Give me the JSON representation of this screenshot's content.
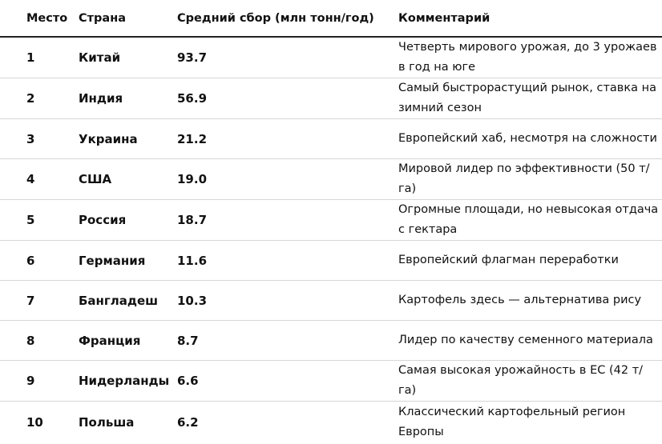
{
  "table": {
    "headers": {
      "rank": "Место",
      "country": "Страна",
      "yield": "Средний сбор (млн тонн/год)",
      "comment": "Комментарий"
    },
    "rows": [
      {
        "rank": "1",
        "country": "Китай",
        "yield": "93.7",
        "comment": "Четверть мирового урожая, до 3 урожаев в год на юге"
      },
      {
        "rank": "2",
        "country": "Индия",
        "yield": "56.9",
        "comment": "Самый быстрорастущий рынок, ставка на зимний сезон"
      },
      {
        "rank": "3",
        "country": "Украина",
        "yield": "21.2",
        "comment": "Европейский хаб, несмотря на сложности"
      },
      {
        "rank": "4",
        "country": "США",
        "yield": "19.0",
        "comment": "Мировой лидер по эффективности (50 т/га)"
      },
      {
        "rank": "5",
        "country": "Россия",
        "yield": "18.7",
        "comment": "Огромные площади, но невысокая отдача с гектара"
      },
      {
        "rank": "6",
        "country": "Германия",
        "yield": "11.6",
        "comment": "Европейский флагман переработки"
      },
      {
        "rank": "7",
        "country": "Бангладеш",
        "yield": "10.3",
        "comment": "Картофель здесь — альтернатива рису"
      },
      {
        "rank": "8",
        "country": "Франция",
        "yield": "8.7",
        "comment": "Лидер по качеству семенного материала"
      },
      {
        "rank": "9",
        "country": "Нидерланды",
        "yield": "6.6",
        "comment": "Самая высокая урожайность в ЕС (42 т/га)"
      },
      {
        "rank": "10",
        "country": "Польша",
        "yield": "6.2",
        "comment": "Классический картофельный регион Европы"
      }
    ]
  }
}
